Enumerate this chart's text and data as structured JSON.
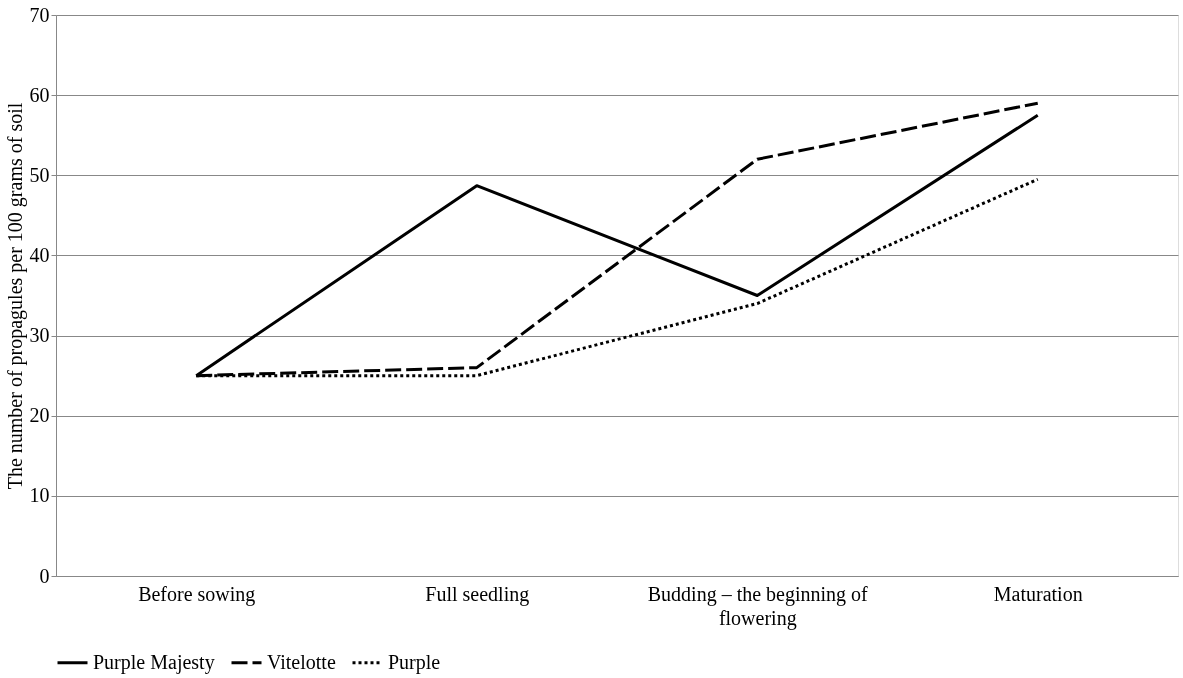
{
  "chart_data": {
    "type": "line",
    "ylabel": "The number of propagules per 100 grams of soil",
    "categories": [
      "Before sowing",
      "Full seedling",
      "Budding – the beginning of flowering",
      "Maturation"
    ],
    "series": [
      {
        "name": "Purple Majesty",
        "color": "#000000",
        "line_style": "solid",
        "values": [
          25,
          48.7,
          35,
          57.5
        ]
      },
      {
        "name": "Vitelotte",
        "color": "#000000",
        "line_style": "dashed",
        "values": [
          25,
          26,
          52,
          59
        ]
      },
      {
        "name": "Purple",
        "color": "#000000",
        "line_style": "dotted",
        "values": [
          25,
          25,
          34,
          49.5
        ]
      }
    ],
    "ylim": [
      0,
      70
    ],
    "yticks": [
      0,
      10,
      20,
      30,
      40,
      50,
      60,
      70
    ],
    "grid": "y",
    "legend": "bottom",
    "marker": "none"
  }
}
